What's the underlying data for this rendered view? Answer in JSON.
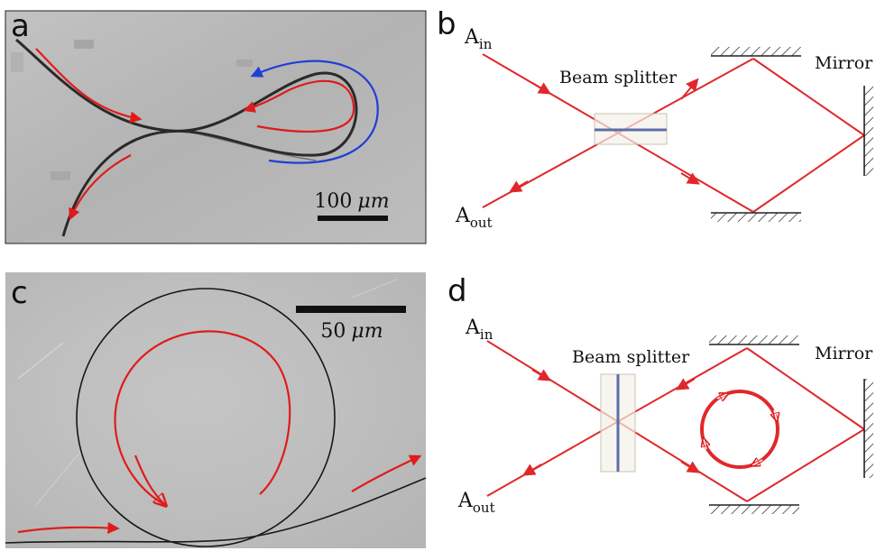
{
  "panels": {
    "a": {
      "label": "a",
      "scale_value": "100",
      "scale_unit": "μm"
    },
    "b": {
      "label": "b",
      "input_label": "A",
      "input_sub": "in",
      "output_label": "A",
      "output_sub": "out",
      "splitter_label": "Beam splitter",
      "mirror_label": "Mirror"
    },
    "c": {
      "label": "c",
      "scale_value": "50",
      "scale_unit": "μm"
    },
    "d": {
      "label": "d",
      "input_label": "A",
      "input_sub": "in",
      "output_label": "A",
      "output_sub": "out",
      "splitter_label": "Beam splitter",
      "mirror_label": "Mirror"
    }
  },
  "colors": {
    "beam": "#e0282b",
    "arrow_red": "#e01b1b",
    "arrow_blue": "#1f3fd6",
    "micrograph_a": "#b9b9b9",
    "micrograph_c": "#c4c4c4"
  }
}
